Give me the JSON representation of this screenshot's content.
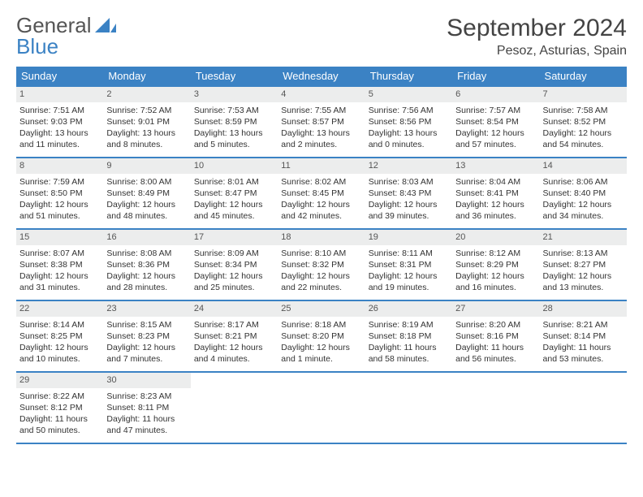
{
  "brand": {
    "word1": "General",
    "word2": "Blue"
  },
  "title": "September 2024",
  "location": "Pesoz, Asturias, Spain",
  "colors": {
    "brand_blue": "#3b82c4",
    "header_bg": "#3b82c4",
    "daynum_bg": "#eceded",
    "text": "#333333"
  },
  "dow": [
    "Sunday",
    "Monday",
    "Tuesday",
    "Wednesday",
    "Thursday",
    "Friday",
    "Saturday"
  ],
  "weeks": [
    [
      {
        "n": "1",
        "sunrise": "7:51 AM",
        "sunset": "9:03 PM",
        "dl": "13 hours and 11 minutes."
      },
      {
        "n": "2",
        "sunrise": "7:52 AM",
        "sunset": "9:01 PM",
        "dl": "13 hours and 8 minutes."
      },
      {
        "n": "3",
        "sunrise": "7:53 AM",
        "sunset": "8:59 PM",
        "dl": "13 hours and 5 minutes."
      },
      {
        "n": "4",
        "sunrise": "7:55 AM",
        "sunset": "8:57 PM",
        "dl": "13 hours and 2 minutes."
      },
      {
        "n": "5",
        "sunrise": "7:56 AM",
        "sunset": "8:56 PM",
        "dl": "13 hours and 0 minutes."
      },
      {
        "n": "6",
        "sunrise": "7:57 AM",
        "sunset": "8:54 PM",
        "dl": "12 hours and 57 minutes."
      },
      {
        "n": "7",
        "sunrise": "7:58 AM",
        "sunset": "8:52 PM",
        "dl": "12 hours and 54 minutes."
      }
    ],
    [
      {
        "n": "8",
        "sunrise": "7:59 AM",
        "sunset": "8:50 PM",
        "dl": "12 hours and 51 minutes."
      },
      {
        "n": "9",
        "sunrise": "8:00 AM",
        "sunset": "8:49 PM",
        "dl": "12 hours and 48 minutes."
      },
      {
        "n": "10",
        "sunrise": "8:01 AM",
        "sunset": "8:47 PM",
        "dl": "12 hours and 45 minutes."
      },
      {
        "n": "11",
        "sunrise": "8:02 AM",
        "sunset": "8:45 PM",
        "dl": "12 hours and 42 minutes."
      },
      {
        "n": "12",
        "sunrise": "8:03 AM",
        "sunset": "8:43 PM",
        "dl": "12 hours and 39 minutes."
      },
      {
        "n": "13",
        "sunrise": "8:04 AM",
        "sunset": "8:41 PM",
        "dl": "12 hours and 36 minutes."
      },
      {
        "n": "14",
        "sunrise": "8:06 AM",
        "sunset": "8:40 PM",
        "dl": "12 hours and 34 minutes."
      }
    ],
    [
      {
        "n": "15",
        "sunrise": "8:07 AM",
        "sunset": "8:38 PM",
        "dl": "12 hours and 31 minutes."
      },
      {
        "n": "16",
        "sunrise": "8:08 AM",
        "sunset": "8:36 PM",
        "dl": "12 hours and 28 minutes."
      },
      {
        "n": "17",
        "sunrise": "8:09 AM",
        "sunset": "8:34 PM",
        "dl": "12 hours and 25 minutes."
      },
      {
        "n": "18",
        "sunrise": "8:10 AM",
        "sunset": "8:32 PM",
        "dl": "12 hours and 22 minutes."
      },
      {
        "n": "19",
        "sunrise": "8:11 AM",
        "sunset": "8:31 PM",
        "dl": "12 hours and 19 minutes."
      },
      {
        "n": "20",
        "sunrise": "8:12 AM",
        "sunset": "8:29 PM",
        "dl": "12 hours and 16 minutes."
      },
      {
        "n": "21",
        "sunrise": "8:13 AM",
        "sunset": "8:27 PM",
        "dl": "12 hours and 13 minutes."
      }
    ],
    [
      {
        "n": "22",
        "sunrise": "8:14 AM",
        "sunset": "8:25 PM",
        "dl": "12 hours and 10 minutes."
      },
      {
        "n": "23",
        "sunrise": "8:15 AM",
        "sunset": "8:23 PM",
        "dl": "12 hours and 7 minutes."
      },
      {
        "n": "24",
        "sunrise": "8:17 AM",
        "sunset": "8:21 PM",
        "dl": "12 hours and 4 minutes."
      },
      {
        "n": "25",
        "sunrise": "8:18 AM",
        "sunset": "8:20 PM",
        "dl": "12 hours and 1 minute."
      },
      {
        "n": "26",
        "sunrise": "8:19 AM",
        "sunset": "8:18 PM",
        "dl": "11 hours and 58 minutes."
      },
      {
        "n": "27",
        "sunrise": "8:20 AM",
        "sunset": "8:16 PM",
        "dl": "11 hours and 56 minutes."
      },
      {
        "n": "28",
        "sunrise": "8:21 AM",
        "sunset": "8:14 PM",
        "dl": "11 hours and 53 minutes."
      }
    ],
    [
      {
        "n": "29",
        "sunrise": "8:22 AM",
        "sunset": "8:12 PM",
        "dl": "11 hours and 50 minutes."
      },
      {
        "n": "30",
        "sunrise": "8:23 AM",
        "sunset": "8:11 PM",
        "dl": "11 hours and 47 minutes."
      },
      null,
      null,
      null,
      null,
      null
    ]
  ],
  "labels": {
    "sunrise": "Sunrise:",
    "sunset": "Sunset:",
    "daylight": "Daylight:"
  }
}
